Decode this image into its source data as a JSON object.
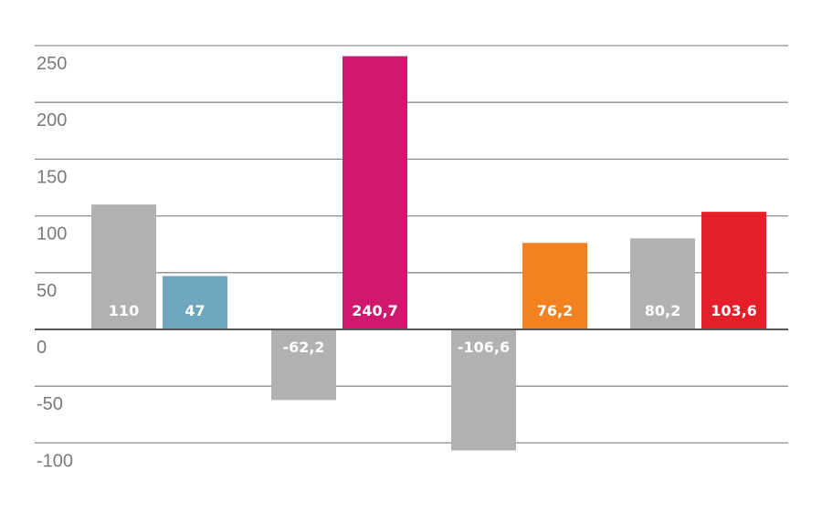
{
  "chart_data": {
    "type": "bar",
    "y_ticks": [
      250,
      200,
      150,
      100,
      50,
      0,
      -50,
      -100
    ],
    "y_tick_labels": [
      "250",
      "200",
      "150",
      "100",
      "50",
      "0",
      "-50",
      "-100"
    ],
    "ylim": [
      -100,
      250
    ],
    "grid": true,
    "legend": "none",
    "bars": [
      {
        "value": 110,
        "label": "110",
        "color": "#b0b1b3",
        "group": 1
      },
      {
        "value": 47,
        "label": "47",
        "color": "#6ea6be",
        "group": 1
      },
      {
        "value": -62.2,
        "label": "-62,2",
        "color": "#b0b1b3",
        "group": 2
      },
      {
        "value": 240.7,
        "label": "240,7",
        "color": "#d0196e",
        "group": 2
      },
      {
        "value": -106.6,
        "label": "-106,6",
        "color": "#b0b1b3",
        "group": 3
      },
      {
        "value": 76.2,
        "label": "76,2",
        "color": "#f3811f",
        "group": 3
      },
      {
        "value": 80.2,
        "label": "80,2",
        "color": "#b0b1b3",
        "group": 4
      },
      {
        "value": 103.6,
        "label": "103,6",
        "color": "#e41f2a",
        "group": 4
      }
    ]
  }
}
